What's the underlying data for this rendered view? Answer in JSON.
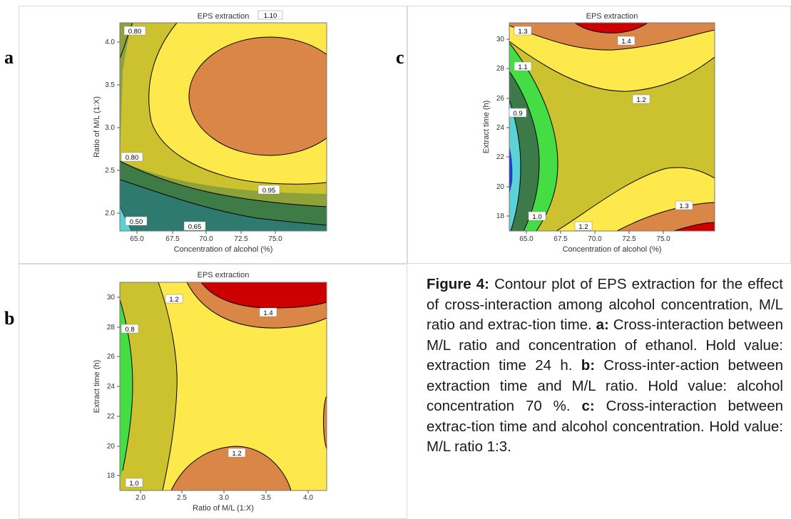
{
  "labels": {
    "a": "a",
    "b": "b",
    "c": "c"
  },
  "chart_data": [
    {
      "id": "a",
      "type": "contour",
      "title": "EPS extraction",
      "xlabel": "Concentration of alcohol (%)",
      "ylabel": "Ratio of M/L (1:X)",
      "xlim": [
        64,
        76
      ],
      "ylim": [
        1.8,
        4.2
      ],
      "xticks": [
        "65.0",
        "67.5",
        "70.0",
        "72.5",
        "75.0"
      ],
      "yticks": [
        "2.0",
        "2.5",
        "3.0",
        "3.5",
        "4.0"
      ],
      "contour_labels": [
        "0.80",
        "1.10",
        "0.80",
        "0.95",
        "0.50",
        "0.65"
      ],
      "levels": [
        0.5,
        0.65,
        0.8,
        0.95,
        1.1
      ]
    },
    {
      "id": "b",
      "type": "contour",
      "title": "EPS extraction",
      "xlabel": "Ratio of M/L (1:X)",
      "ylabel": "Extract time (h)",
      "xlim": [
        1.8,
        4.2
      ],
      "ylim": [
        17,
        31
      ],
      "xticks": [
        "2.0",
        "2.5",
        "3.0",
        "3.5",
        "4.0"
      ],
      "yticks": [
        "18",
        "20",
        "22",
        "24",
        "26",
        "28",
        "30"
      ],
      "contour_labels": [
        "1.2",
        "1.4",
        "0.8",
        "1.2",
        "1.0"
      ],
      "levels": [
        0.8,
        1.0,
        1.2,
        1.4
      ]
    },
    {
      "id": "c",
      "type": "contour",
      "title": "EPS extraction",
      "xlabel": "Concentration of alcohol (%)",
      "ylabel": "Extract time (h)",
      "xlim": [
        64,
        76
      ],
      "ylim": [
        17,
        31
      ],
      "xticks": [
        "65.0",
        "67.5",
        "70.0",
        "72.5",
        "75.0"
      ],
      "yticks": [
        "18",
        "20",
        "22",
        "24",
        "26",
        "28",
        "30"
      ],
      "contour_labels": [
        "1.3",
        "1.4",
        "1.1",
        "1.2",
        "0.9",
        "1.3",
        "1.0",
        "1.2"
      ],
      "levels": [
        0.9,
        1.0,
        1.1,
        1.2,
        1.3,
        1.4
      ]
    }
  ],
  "caption": {
    "heading": "Figure 4:",
    "intro": " Contour plot of EPS extraction for the effect of cross-interaction among alcohol concentration, M/L ratio and extrac-tion time. ",
    "a_key": "a:",
    "a_text": " Cross-interaction between M/L ratio and concentration of ethanol. Hold value: extraction time 24 h. ",
    "b_key": "b:",
    "b_text": " Cross-inter-action between extraction time and M/L ratio. Hold value: alcohol concentration 70 %. ",
    "c_key": "c:",
    "c_text": " Cross-interaction between extrac-tion time and alcohol concentration. Hold value: M/L ratio 1:3."
  }
}
